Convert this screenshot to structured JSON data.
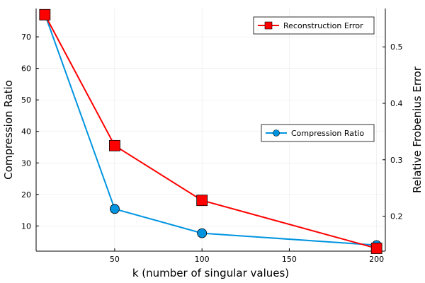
{
  "chart_data": {
    "type": "line",
    "x": [
      10,
      50,
      100,
      200
    ],
    "xlabel": "k (number of singular values)",
    "xlim": [
      5,
      205
    ],
    "xticks": [
      50,
      100,
      150,
      200
    ],
    "grid": true,
    "left_axis": {
      "label": "Compression Ratio",
      "ylim": [
        2,
        79
      ],
      "ticks": [
        10,
        20,
        30,
        40,
        50,
        60,
        70
      ]
    },
    "right_axis": {
      "label": "Relative Frobenius Error",
      "ylim": [
        0.138,
        0.568
      ],
      "ticks": [
        0.2,
        0.3,
        0.4,
        0.5
      ]
    },
    "series": [
      {
        "name": "Compression Ratio",
        "axis": "left",
        "values": [
          77.2,
          15.4,
          7.7,
          3.9
        ],
        "color": "#0094e0",
        "marker": "circle",
        "legend_position": "right-middle"
      },
      {
        "name": "Reconstruction Error",
        "axis": "right",
        "values": [
          0.557,
          0.325,
          0.228,
          0.143
        ],
        "color": "#ff0000",
        "marker": "square",
        "legend_position": "top-right"
      }
    ]
  }
}
